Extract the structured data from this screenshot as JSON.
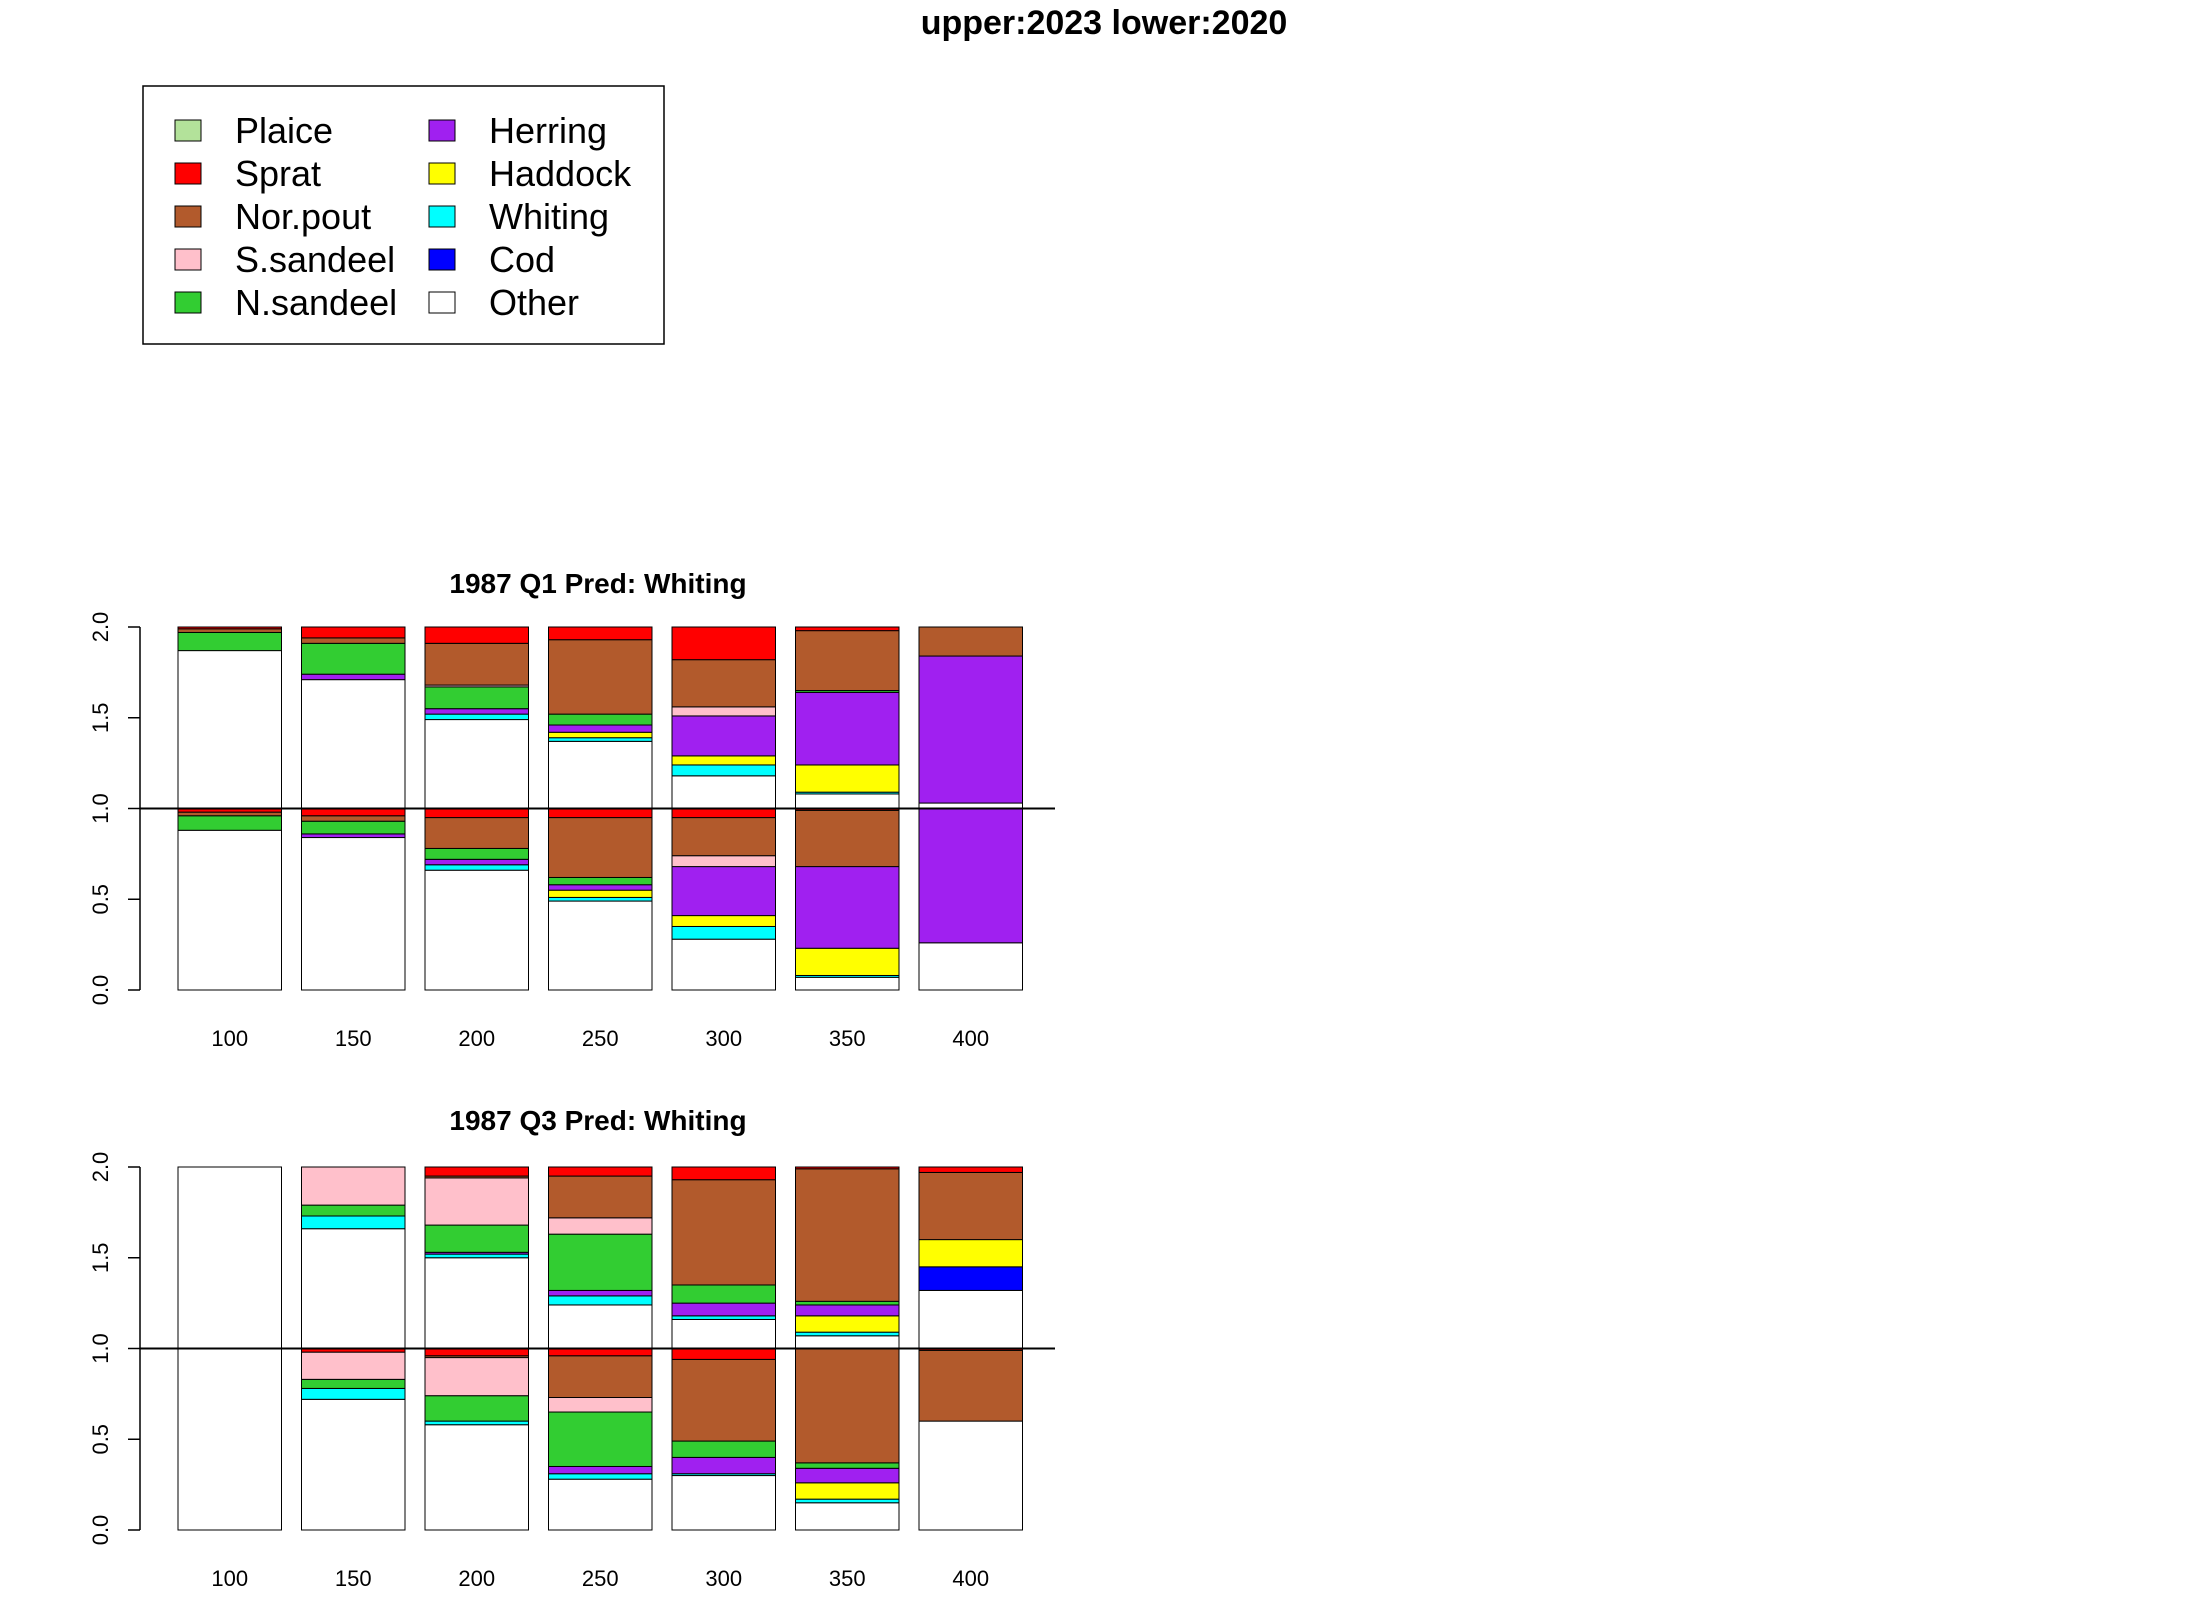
{
  "figure": {
    "title": "upper:2023  lower:2020"
  },
  "legend": {
    "placement": "top-left",
    "items": [
      {
        "label": "Plaice",
        "color": "#b3e29a"
      },
      {
        "label": "Sprat",
        "color": "#ff0000"
      },
      {
        "label": "Nor.pout",
        "color": "#b25a2c"
      },
      {
        "label": "S.sandeel",
        "color": "#ffc0cb"
      },
      {
        "label": "N.sandeel",
        "color": "#32cd32"
      },
      {
        "label": "Herring",
        "color": "#a020f0"
      },
      {
        "label": "Haddock",
        "color": "#ffff00"
      },
      {
        "label": "Whiting",
        "color": "#00ffff"
      },
      {
        "label": "Cod",
        "color": "#0000ff"
      },
      {
        "label": "Other",
        "color": "#ffffff"
      }
    ]
  },
  "chart_data": [
    {
      "type": "bar",
      "stacked": true,
      "title": "1987 Q1  Pred: Whiting",
      "categories": [
        "100",
        "150",
        "200",
        "250",
        "300",
        "350",
        "400"
      ],
      "ylim": [
        0,
        2
      ],
      "yticks": [
        "0.0",
        "0.5",
        "1.0",
        "1.5",
        "2.0"
      ],
      "reference_line": 1.0,
      "groups": [
        {
          "name": "lower",
          "offset": 0,
          "stack_order": [
            "Other",
            "Cod",
            "Whiting",
            "Haddock",
            "Herring",
            "N.sandeel",
            "S.sandeel",
            "Nor.pout",
            "Sprat",
            "Plaice"
          ],
          "series": [
            {
              "name": "Other",
              "values": [
                0.88,
                0.84,
                0.66,
                0.49,
                0.28,
                0.07,
                0.26
              ]
            },
            {
              "name": "Cod",
              "values": [
                0.0,
                0.0,
                0.0,
                0.0,
                0.0,
                0.0,
                0.0
              ]
            },
            {
              "name": "Whiting",
              "values": [
                0.0,
                0.0,
                0.03,
                0.02,
                0.07,
                0.01,
                0.0
              ]
            },
            {
              "name": "Haddock",
              "values": [
                0.0,
                0.0,
                0.0,
                0.04,
                0.06,
                0.15,
                0.0
              ]
            },
            {
              "name": "Herring",
              "values": [
                0.0,
                0.02,
                0.03,
                0.03,
                0.27,
                0.45,
                0.74
              ]
            },
            {
              "name": "N.sandeel",
              "values": [
                0.08,
                0.07,
                0.06,
                0.04,
                0.0,
                0.0,
                0.0
              ]
            },
            {
              "name": "S.sandeel",
              "values": [
                0.0,
                0.0,
                0.0,
                0.0,
                0.06,
                0.0,
                0.0
              ]
            },
            {
              "name": "Nor.pout",
              "values": [
                0.02,
                0.03,
                0.17,
                0.33,
                0.21,
                0.31,
                0.0
              ]
            },
            {
              "name": "Sprat",
              "values": [
                0.02,
                0.04,
                0.05,
                0.05,
                0.05,
                0.01,
                0.0
              ]
            },
            {
              "name": "Plaice",
              "values": [
                0.0,
                0.0,
                0.0,
                0.0,
                0.0,
                0.0,
                0.0
              ]
            }
          ]
        },
        {
          "name": "upper",
          "offset": 1,
          "stack_order": [
            "Other",
            "Cod",
            "Whiting",
            "Haddock",
            "Herring",
            "N.sandeel",
            "S.sandeel",
            "Nor.pout",
            "Sprat",
            "Plaice"
          ],
          "series": [
            {
              "name": "Other",
              "values": [
                0.87,
                0.71,
                0.49,
                0.37,
                0.18,
                0.08,
                0.03
              ]
            },
            {
              "name": "Cod",
              "values": [
                0.0,
                0.0,
                0.0,
                0.0,
                0.0,
                0.0,
                0.0
              ]
            },
            {
              "name": "Whiting",
              "values": [
                0.0,
                0.0,
                0.03,
                0.02,
                0.06,
                0.01,
                0.0
              ]
            },
            {
              "name": "Haddock",
              "values": [
                0.0,
                0.0,
                0.0,
                0.03,
                0.05,
                0.15,
                0.0
              ]
            },
            {
              "name": "Herring",
              "values": [
                0.0,
                0.03,
                0.03,
                0.04,
                0.22,
                0.4,
                0.81
              ]
            },
            {
              "name": "N.sandeel",
              "values": [
                0.1,
                0.17,
                0.12,
                0.06,
                0.0,
                0.01,
                0.0
              ]
            },
            {
              "name": "S.sandeel",
              "values": [
                0.0,
                0.0,
                0.01,
                0.0,
                0.05,
                0.0,
                0.0
              ]
            },
            {
              "name": "Nor.pout",
              "values": [
                0.02,
                0.03,
                0.23,
                0.41,
                0.26,
                0.33,
                0.16
              ]
            },
            {
              "name": "Sprat",
              "values": [
                0.01,
                0.06,
                0.09,
                0.07,
                0.18,
                0.02,
                0.0
              ]
            },
            {
              "name": "Plaice",
              "values": [
                0.0,
                0.0,
                0.0,
                0.0,
                0.0,
                0.0,
                0.0
              ]
            }
          ]
        }
      ]
    },
    {
      "type": "bar",
      "stacked": true,
      "title": "1987 Q3  Pred: Whiting",
      "categories": [
        "100",
        "150",
        "200",
        "250",
        "300",
        "350",
        "400"
      ],
      "ylim": [
        0,
        2
      ],
      "yticks": [
        "0.0",
        "0.5",
        "1.0",
        "1.5",
        "2.0"
      ],
      "reference_line": 1.0,
      "groups": [
        {
          "name": "lower",
          "offset": 0,
          "stack_order": [
            "Other",
            "Cod",
            "Whiting",
            "Haddock",
            "Herring",
            "N.sandeel",
            "S.sandeel",
            "Nor.pout",
            "Sprat",
            "Plaice"
          ],
          "series": [
            {
              "name": "Other",
              "values": [
                1.0,
                0.72,
                0.58,
                0.28,
                0.3,
                0.15,
                0.6
              ]
            },
            {
              "name": "Cod",
              "values": [
                0.0,
                0.0,
                0.0,
                0.0,
                0.0,
                0.0,
                0.0
              ]
            },
            {
              "name": "Whiting",
              "values": [
                0.0,
                0.06,
                0.02,
                0.03,
                0.01,
                0.02,
                0.0
              ]
            },
            {
              "name": "Haddock",
              "values": [
                0.0,
                0.0,
                0.0,
                0.0,
                0.0,
                0.09,
                0.0
              ]
            },
            {
              "name": "Herring",
              "values": [
                0.0,
                0.0,
                0.0,
                0.04,
                0.09,
                0.08,
                0.0
              ]
            },
            {
              "name": "N.sandeel",
              "values": [
                0.0,
                0.05,
                0.14,
                0.3,
                0.09,
                0.03,
                0.0
              ]
            },
            {
              "name": "S.sandeel",
              "values": [
                0.0,
                0.15,
                0.21,
                0.08,
                0.0,
                0.0,
                0.0
              ]
            },
            {
              "name": "Nor.pout",
              "values": [
                0.0,
                0.0,
                0.01,
                0.23,
                0.45,
                0.63,
                0.39
              ]
            },
            {
              "name": "Sprat",
              "values": [
                0.0,
                0.02,
                0.04,
                0.04,
                0.06,
                0.0,
                0.01
              ]
            },
            {
              "name": "Plaice",
              "values": [
                0.0,
                0.0,
                0.0,
                0.0,
                0.0,
                0.0,
                0.0
              ]
            }
          ]
        },
        {
          "name": "upper",
          "offset": 1,
          "stack_order": [
            "Other",
            "Cod",
            "Whiting",
            "Haddock",
            "Herring",
            "N.sandeel",
            "S.sandeel",
            "Nor.pout",
            "Sprat",
            "Plaice"
          ],
          "series": [
            {
              "name": "Other",
              "values": [
                1.0,
                0.66,
                0.5,
                0.24,
                0.16,
                0.07,
                0.32
              ]
            },
            {
              "name": "Cod",
              "values": [
                0.0,
                0.0,
                0.0,
                0.0,
                0.0,
                0.0,
                0.13
              ]
            },
            {
              "name": "Whiting",
              "values": [
                0.0,
                0.07,
                0.02,
                0.05,
                0.02,
                0.02,
                0.0
              ]
            },
            {
              "name": "Haddock",
              "values": [
                0.0,
                0.0,
                0.0,
                0.0,
                0.0,
                0.09,
                0.15
              ]
            },
            {
              "name": "Herring",
              "values": [
                0.0,
                0.0,
                0.01,
                0.03,
                0.07,
                0.06,
                0.0
              ]
            },
            {
              "name": "N.sandeel",
              "values": [
                0.0,
                0.06,
                0.15,
                0.31,
                0.1,
                0.02,
                0.0
              ]
            },
            {
              "name": "S.sandeel",
              "values": [
                0.0,
                0.21,
                0.26,
                0.09,
                0.0,
                0.0,
                0.0
              ]
            },
            {
              "name": "Nor.pout",
              "values": [
                0.0,
                0.0,
                0.01,
                0.23,
                0.58,
                0.73,
                0.37
              ]
            },
            {
              "name": "Sprat",
              "values": [
                0.0,
                0.0,
                0.05,
                0.05,
                0.07,
                0.01,
                0.03
              ]
            },
            {
              "name": "Plaice",
              "values": [
                0.0,
                0.0,
                0.0,
                0.0,
                0.0,
                0.0,
                0.0
              ]
            }
          ]
        }
      ]
    }
  ]
}
